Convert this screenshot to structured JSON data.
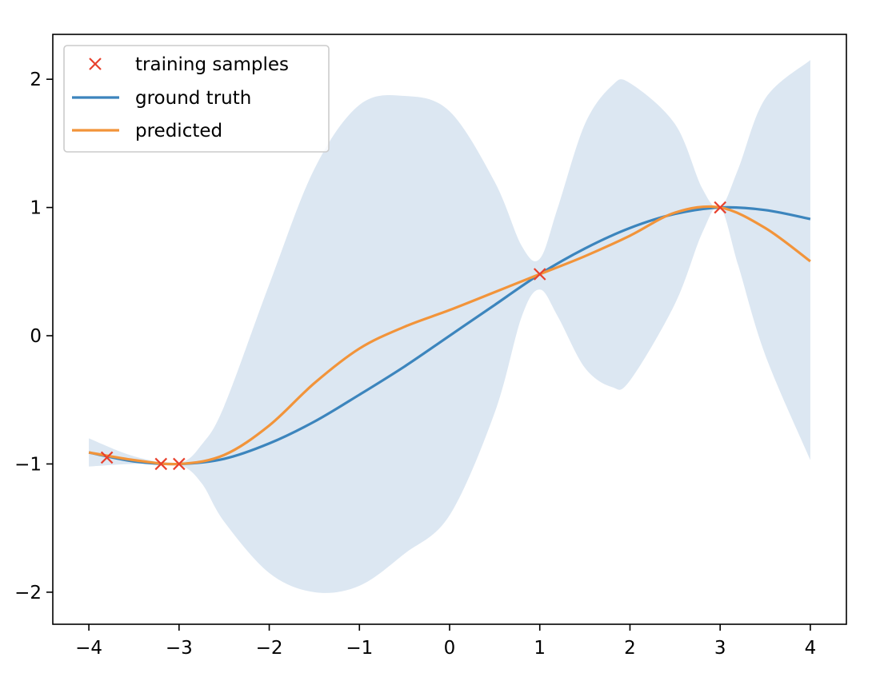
{
  "chart_data": {
    "type": "line",
    "title": "",
    "xlabel": "",
    "ylabel": "",
    "xlim": [
      -4.4,
      4.4
    ],
    "ylim": [
      -2.25,
      2.35
    ],
    "xticks": [
      -4,
      -3,
      -2,
      -1,
      0,
      1,
      2,
      3,
      4
    ],
    "xtick_labels": [
      "−4",
      "−3",
      "−2",
      "−1",
      "0",
      "1",
      "2",
      "3",
      "4"
    ],
    "yticks": [
      -2,
      -1,
      0,
      1,
      2
    ],
    "ytick_labels": [
      "−2",
      "−1",
      "0",
      "1",
      "2"
    ],
    "grid": false,
    "legend_position": "top-left",
    "legend": [
      "training samples",
      "ground truth",
      "predicted"
    ],
    "colors": {
      "training": "#e8412d",
      "truth": "#3c85bd",
      "predicted": "#f2943a",
      "band": "#dce7f2"
    },
    "training_samples": {
      "x": [
        -3.8,
        -3.2,
        -3.0,
        1.0,
        3.0
      ],
      "y": [
        -0.95,
        -1.0,
        -1.0,
        0.48,
        1.0
      ]
    },
    "ground_truth": {
      "x": [
        -4.0,
        -3.5,
        -3.0,
        -2.5,
        -2.0,
        -1.5,
        -1.0,
        -0.5,
        0.0,
        0.5,
        1.0,
        1.5,
        2.0,
        2.5,
        3.0,
        3.5,
        4.0
      ],
      "y": [
        -0.91,
        -0.98,
        -1.0,
        -0.96,
        -0.84,
        -0.67,
        -0.46,
        -0.24,
        0.0,
        0.24,
        0.48,
        0.68,
        0.84,
        0.95,
        1.0,
        0.98,
        0.91
      ]
    },
    "predicted": {
      "x": [
        -4.0,
        -3.5,
        -3.0,
        -2.5,
        -2.0,
        -1.5,
        -1.0,
        -0.5,
        0.0,
        0.5,
        1.0,
        1.5,
        2.0,
        2.5,
        3.0,
        3.5,
        4.0
      ],
      "y": [
        -0.91,
        -0.97,
        -1.0,
        -0.93,
        -0.7,
        -0.37,
        -0.1,
        0.07,
        0.2,
        0.34,
        0.48,
        0.62,
        0.78,
        0.96,
        1.0,
        0.84,
        0.58
      ]
    },
    "uncertainty_band": {
      "x": [
        -4.0,
        -3.5,
        -3.0,
        -2.75,
        -2.5,
        -2.0,
        -1.5,
        -1.0,
        -0.5,
        0.0,
        0.5,
        0.8,
        1.0,
        1.2,
        1.5,
        1.8,
        2.0,
        2.5,
        2.8,
        3.0,
        3.2,
        3.5,
        4.0
      ],
      "upper": [
        -0.8,
        -0.94,
        -0.99,
        -0.85,
        -0.55,
        0.4,
        1.3,
        1.8,
        1.87,
        1.75,
        1.2,
        0.7,
        0.6,
        1.0,
        1.65,
        1.95,
        1.97,
        1.65,
        1.15,
        1.0,
        1.3,
        1.85,
        2.15
      ],
      "lower": [
        -1.02,
        -1.0,
        -1.01,
        -1.15,
        -1.45,
        -1.85,
        -2.0,
        -1.95,
        -1.7,
        -1.4,
        -0.6,
        0.15,
        0.36,
        0.15,
        -0.25,
        -0.4,
        -0.35,
        0.25,
        0.8,
        1.0,
        0.55,
        -0.15,
        -0.97
      ]
    }
  }
}
